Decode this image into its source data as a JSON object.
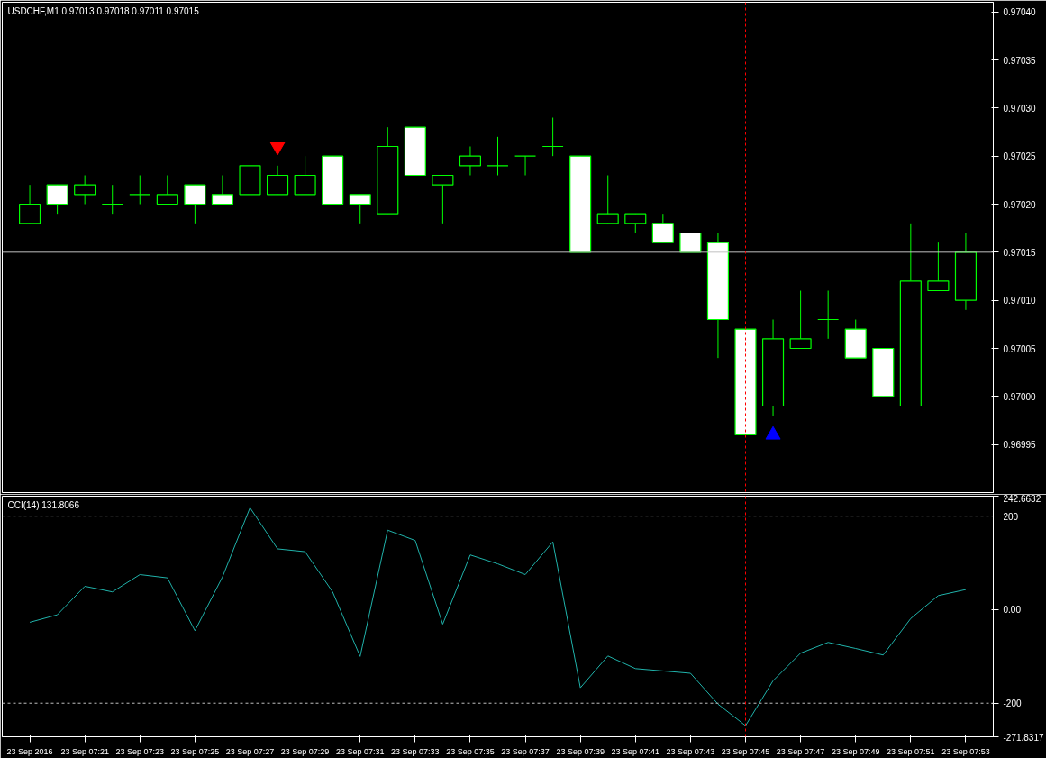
{
  "chart_data": [
    {
      "type": "candlestick",
      "title": "USDCHF,M1  0.97013 0.97018 0.97011 0.97015",
      "grid": false,
      "tick_labels": "y",
      "x": [
        "2016-09-23T07:19",
        "2016-09-23T07:20",
        "2016-09-23T07:21",
        "2016-09-23T07:22",
        "2016-09-23T07:23",
        "2016-09-23T07:24",
        "2016-09-23T07:25",
        "2016-09-23T07:26",
        "2016-09-23T07:27",
        "2016-09-23T07:28",
        "2016-09-23T07:29",
        "2016-09-23T07:30",
        "2016-09-23T07:31",
        "2016-09-23T07:32",
        "2016-09-23T07:33",
        "2016-09-23T07:34",
        "2016-09-23T07:35",
        "2016-09-23T07:36",
        "2016-09-23T07:37",
        "2016-09-23T07:38",
        "2016-09-23T07:39",
        "2016-09-23T07:40",
        "2016-09-23T07:41",
        "2016-09-23T07:42",
        "2016-09-23T07:43",
        "2016-09-23T07:44",
        "2016-09-23T07:45",
        "2016-09-23T07:46",
        "2016-09-23T07:47",
        "2016-09-23T07:48",
        "2016-09-23T07:49",
        "2016-09-23T07:50",
        "2016-09-23T07:51",
        "2016-09-23T07:52",
        "2016-09-23T07:53"
      ],
      "series": [
        {
          "type": "candlestick",
          "color": "#00ff00",
          "ohlc": [
            [
              0.97018,
              0.97022,
              0.97018,
              0.9702
            ],
            [
              0.97022,
              0.97022,
              0.97019,
              0.9702
            ],
            [
              0.97021,
              0.97023,
              0.9702,
              0.97022
            ],
            [
              0.9702,
              0.97022,
              0.97019,
              0.9702
            ],
            [
              0.97021,
              0.97023,
              0.9702,
              0.97021
            ],
            [
              0.9702,
              0.97023,
              0.9702,
              0.97021
            ],
            [
              0.97022,
              0.97022,
              0.97018,
              0.9702
            ],
            [
              0.97021,
              0.97023,
              0.9702,
              0.9702
            ],
            [
              0.97021,
              0.97025,
              0.97021,
              0.97024
            ],
            [
              0.97021,
              0.97024,
              0.97021,
              0.97023
            ],
            [
              0.97021,
              0.97025,
              0.97021,
              0.97023
            ],
            [
              0.97025,
              0.97025,
              0.9702,
              0.9702
            ],
            [
              0.97021,
              0.97021,
              0.97018,
              0.9702
            ],
            [
              0.97019,
              0.97028,
              0.97019,
              0.97026
            ],
            [
              0.97028,
              0.97028,
              0.97023,
              0.97023
            ],
            [
              0.97022,
              0.97023,
              0.97018,
              0.97023
            ],
            [
              0.97024,
              0.97026,
              0.97023,
              0.97025
            ],
            [
              0.97024,
              0.97027,
              0.97023,
              0.97024
            ],
            [
              0.97025,
              0.97025,
              0.97023,
              0.97025
            ],
            [
              0.97026,
              0.97029,
              0.97025,
              0.97026
            ],
            [
              0.97025,
              0.97025,
              0.97015,
              0.97015
            ],
            [
              0.97018,
              0.97023,
              0.97018,
              0.97019
            ],
            [
              0.97018,
              0.97019,
              0.97017,
              0.97019
            ],
            [
              0.97018,
              0.97019,
              0.97016,
              0.97016
            ],
            [
              0.97017,
              0.97017,
              0.97015,
              0.97015
            ],
            [
              0.97016,
              0.97017,
              0.97004,
              0.97008
            ],
            [
              0.97007,
              0.97007,
              0.96996,
              0.96996
            ],
            [
              0.96999,
              0.97008,
              0.96998,
              0.97006
            ],
            [
              0.97005,
              0.97011,
              0.97005,
              0.97006
            ],
            [
              0.97008,
              0.97011,
              0.97006,
              0.97008
            ],
            [
              0.97007,
              0.97008,
              0.97004,
              0.97004
            ],
            [
              0.97005,
              0.97005,
              0.97,
              0.97
            ],
            [
              0.96999,
              0.97018,
              0.96999,
              0.97012
            ],
            [
              0.97011,
              0.97016,
              0.97011,
              0.97012
            ],
            [
              0.9701,
              0.97017,
              0.97009,
              0.97015
            ]
          ]
        },
        {
          "type": "scatter",
          "x": [
            "2016-09-23T07:28"
          ],
          "values": [
            0.97026
          ],
          "color": "#ff0000",
          "marker": "triangle"
        },
        {
          "type": "scatter",
          "x": [
            "2016-09-23T07:46"
          ],
          "values": [
            0.96996
          ],
          "color": "#0000ff",
          "marker": "triangle"
        }
      ],
      "xlim": [
        "2016-09-23T07:18",
        "2016-09-23T07:54"
      ],
      "ylim": [
        0.9699,
        0.97041
      ],
      "yticks": [
        {
          "value": 0.96995,
          "label": "0.96995"
        },
        {
          "value": 0.97,
          "label": "0.97000"
        },
        {
          "value": 0.97005,
          "label": "0.97005"
        },
        {
          "value": 0.9701,
          "label": "0.97010"
        },
        {
          "value": 0.97015,
          "label": "0.97015"
        },
        {
          "value": 0.9702,
          "label": "0.97020"
        },
        {
          "value": 0.97025,
          "label": "0.97025"
        },
        {
          "value": 0.9703,
          "label": "0.97030"
        },
        {
          "value": 0.97035,
          "label": "0.97035"
        },
        {
          "value": 0.9704,
          "label": "0.97040"
        }
      ],
      "ref_lines": [
        {
          "axis": "y",
          "value": 0.97015,
          "color": "#c0c0c0",
          "line_style": "solid"
        },
        {
          "axis": "x",
          "value": "2016-09-23T07:27",
          "color": "#ff0000",
          "line_style": "dashed"
        },
        {
          "axis": "x",
          "value": "2016-09-23T07:45",
          "color": "#ff0000",
          "line_style": "dashed"
        }
      ]
    },
    {
      "type": "line",
      "title": "CCI(14) 131.8066",
      "grid": false,
      "marker": "none",
      "line_style": "solid",
      "x": [
        "2016-09-23T07:19",
        "2016-09-23T07:20",
        "2016-09-23T07:21",
        "2016-09-23T07:22",
        "2016-09-23T07:23",
        "2016-09-23T07:24",
        "2016-09-23T07:25",
        "2016-09-23T07:26",
        "2016-09-23T07:27",
        "2016-09-23T07:28",
        "2016-09-23T07:29",
        "2016-09-23T07:30",
        "2016-09-23T07:31",
        "2016-09-23T07:32",
        "2016-09-23T07:33",
        "2016-09-23T07:34",
        "2016-09-23T07:35",
        "2016-09-23T07:36",
        "2016-09-23T07:37",
        "2016-09-23T07:38",
        "2016-09-23T07:39",
        "2016-09-23T07:40",
        "2016-09-23T07:41",
        "2016-09-23T07:42",
        "2016-09-23T07:43",
        "2016-09-23T07:44",
        "2016-09-23T07:45",
        "2016-09-23T07:46",
        "2016-09-23T07:47",
        "2016-09-23T07:48",
        "2016-09-23T07:49",
        "2016-09-23T07:50",
        "2016-09-23T07:51",
        "2016-09-23T07:52",
        "2016-09-23T07:53"
      ],
      "series": [
        {
          "color": "#20b2aa",
          "values": [
            -27,
            -11,
            50,
            38,
            75,
            68,
            -45,
            70,
            218,
            130,
            124,
            38,
            -100,
            170,
            148,
            -31,
            117,
            98,
            75,
            145,
            -167,
            -99,
            -126,
            -131,
            -136,
            -202,
            -248,
            -152,
            -93,
            -70,
            -83,
            -97,
            -19,
            30,
            43
          ]
        }
      ],
      "xlim": [
        "2016-09-23T07:18",
        "2016-09-23T07:54"
      ],
      "ylim": [
        -271.8317,
        242.6632
      ],
      "yticks": [
        242.6632,
        200,
        {
          "value": 0,
          "label": "0.00"
        },
        -200,
        -271.8317
      ],
      "xticks": [
        {
          "value": "2016-09-23T07:19",
          "label": "23 Sep 2016"
        },
        {
          "value": "2016-09-23T07:21",
          "label": "23 Sep 07:21"
        },
        {
          "value": "2016-09-23T07:23",
          "label": "23 Sep 07:23"
        },
        {
          "value": "2016-09-23T07:25",
          "label": "23 Sep 07:25"
        },
        {
          "value": "2016-09-23T07:27",
          "label": "23 Sep 07:27"
        },
        {
          "value": "2016-09-23T07:29",
          "label": "23 Sep 07:29"
        },
        {
          "value": "2016-09-23T07:31",
          "label": "23 Sep 07:31"
        },
        {
          "value": "2016-09-23T07:33",
          "label": "23 Sep 07:33"
        },
        {
          "value": "2016-09-23T07:35",
          "label": "23 Sep 07:35"
        },
        {
          "value": "2016-09-23T07:37",
          "label": "23 Sep 07:37"
        },
        {
          "value": "2016-09-23T07:39",
          "label": "23 Sep 07:39"
        },
        {
          "value": "2016-09-23T07:41",
          "label": "23 Sep 07:41"
        },
        {
          "value": "2016-09-23T07:43",
          "label": "23 Sep 07:43"
        },
        {
          "value": "2016-09-23T07:45",
          "label": "23 Sep 07:45"
        },
        {
          "value": "2016-09-23T07:47",
          "label": "23 Sep 07:47"
        },
        {
          "value": "2016-09-23T07:49",
          "label": "23 Sep 07:49"
        },
        {
          "value": "2016-09-23T07:51",
          "label": "23 Sep 07:51"
        },
        {
          "value": "2016-09-23T07:53",
          "label": "23 Sep 07:53"
        }
      ],
      "ref_lines": [
        {
          "axis": "y",
          "value": 200,
          "color": "#c0c0c0",
          "line_style": "dashed"
        },
        {
          "axis": "y",
          "value": -200,
          "color": "#c0c0c0",
          "line_style": "dashed"
        },
        {
          "axis": "x",
          "value": "2016-09-23T07:27",
          "color": "#ff0000",
          "line_style": "dashed"
        },
        {
          "axis": "x",
          "value": "2016-09-23T07:45",
          "color": "#ff0000",
          "line_style": "dashed"
        }
      ]
    }
  ]
}
